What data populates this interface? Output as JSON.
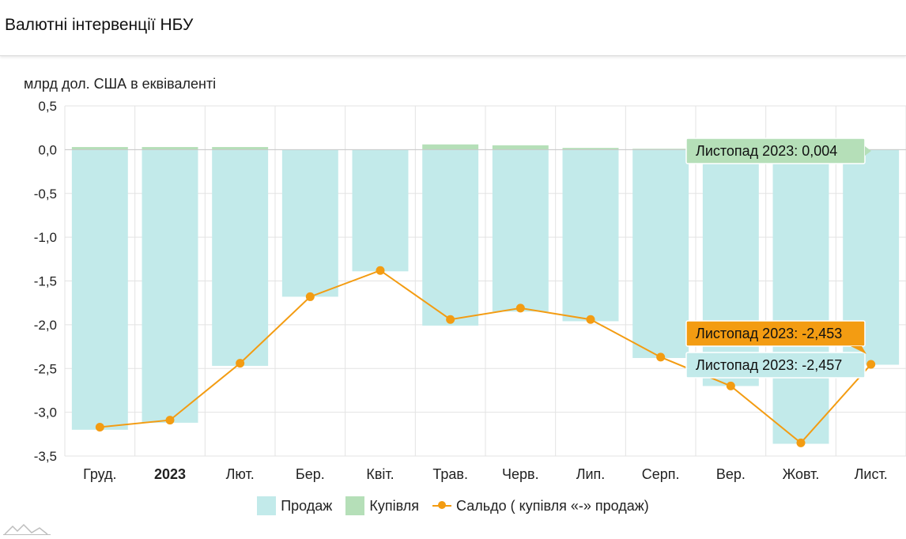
{
  "header": {
    "title": "Валютні інтервенції НБУ"
  },
  "chart_data": {
    "type": "bar",
    "ylabel": "млрд дол. США в еквіваленті",
    "ylim": [
      -3.5,
      0.5
    ],
    "ytick_labels": [
      "0,5",
      "0,0",
      "-0,5",
      "-1,0",
      "-1,5",
      "-2,0",
      "-2,5",
      "-3,0",
      "-3,5"
    ],
    "ytick_values": [
      0.5,
      0,
      -0.5,
      -1.0,
      -1.5,
      -2.0,
      -2.5,
      -3.0,
      -3.5
    ],
    "categories": [
      "Груд.",
      "2023",
      "Лют.",
      "Бер.",
      "Квіт.",
      "Трав.",
      "Черв.",
      "Лип.",
      "Серп.",
      "Вер.",
      "Жовт.",
      "Лист."
    ],
    "bold_categories": [
      "2023"
    ],
    "series": [
      {
        "name": "Продаж",
        "kind": "bar",
        "color": "#c2eaea",
        "values": [
          -3.2,
          -3.12,
          -2.47,
          -1.68,
          -1.39,
          -2.01,
          -1.85,
          -1.96,
          -2.38,
          -2.7,
          -3.36,
          -2.457
        ]
      },
      {
        "name": "Купівля",
        "kind": "bar",
        "color": "#b5dfb8",
        "values": [
          0.03,
          0.03,
          0.03,
          0.0,
          0.0,
          0.06,
          0.05,
          0.02,
          0.01,
          0.0,
          0.0,
          0.004
        ]
      },
      {
        "name": "Сальдо ( купівля «-» продаж)",
        "kind": "line",
        "color": "#f39c12",
        "values": [
          -3.17,
          -3.09,
          -2.44,
          -1.68,
          -1.38,
          -1.94,
          -1.81,
          -1.94,
          -2.37,
          -2.7,
          -3.35,
          -2.453
        ]
      }
    ],
    "tooltips": [
      {
        "text": "Листопад 2023: 0,004",
        "bg": "#b5dfb8",
        "border": "#b5dfb8",
        "color": "#111"
      },
      {
        "text": "Листопад 2023: -2,453",
        "bg": "#f39c12",
        "border": "#f39c12",
        "color": "#111"
      },
      {
        "text": "Листопад 2023: -2,457",
        "bg": "#c2eaea",
        "border": "#c2eaea",
        "color": "#111"
      }
    ],
    "grid": true,
    "legend_position": "bottom"
  }
}
